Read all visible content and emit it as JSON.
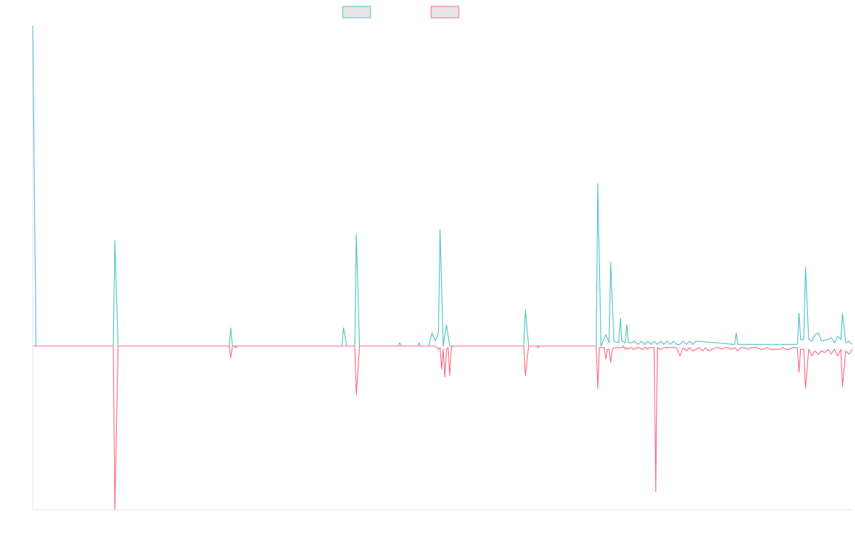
{
  "chart_data": {
    "type": "line",
    "title": "",
    "xlabel": "",
    "ylabel": "",
    "grid": false,
    "legend_position": "top-center",
    "ylim": [
      -100,
      195
    ],
    "series": [
      {
        "color": "#4bc0c0",
        "fill": "#e6e6e6",
        "points": [
          [
            0,
            195
          ],
          [
            2,
            0
          ],
          [
            50,
            0
          ],
          [
            51,
            64
          ],
          [
            53,
            0
          ],
          [
            122,
            0
          ],
          [
            123,
            11
          ],
          [
            124,
            0
          ],
          [
            192,
            0
          ],
          [
            193,
            11
          ],
          [
            195,
            0
          ],
          [
            200,
            0
          ],
          [
            201,
            68
          ],
          [
            203,
            0
          ],
          [
            227,
            0
          ],
          [
            228,
            2
          ],
          [
            229,
            0
          ],
          [
            239,
            0
          ],
          [
            240,
            2
          ],
          [
            241,
            0
          ],
          [
            246,
            0
          ],
          [
            248,
            8
          ],
          [
            250,
            3
          ],
          [
            252,
            8
          ],
          [
            253,
            71
          ],
          [
            255,
            0
          ],
          [
            257,
            13
          ],
          [
            259,
            0
          ],
          [
            305,
            0
          ],
          [
            306,
            22
          ],
          [
            308,
            0
          ],
          [
            350,
            0
          ],
          [
            351,
            99
          ],
          [
            353,
            0
          ],
          [
            356,
            7
          ],
          [
            358,
            2
          ],
          [
            359,
            51
          ],
          [
            361,
            3
          ],
          [
            364,
            2
          ],
          [
            365,
            17
          ],
          [
            366,
            3
          ],
          [
            368,
            2
          ],
          [
            369,
            13
          ],
          [
            370,
            2
          ],
          [
            372,
            2
          ],
          [
            374,
            3
          ],
          [
            376,
            1
          ],
          [
            378,
            3
          ],
          [
            380,
            1
          ],
          [
            382,
            3
          ],
          [
            384,
            1
          ],
          [
            386,
            3
          ],
          [
            388,
            1
          ],
          [
            390,
            3
          ],
          [
            392,
            1
          ],
          [
            394,
            3
          ],
          [
            396,
            1
          ],
          [
            398,
            3
          ],
          [
            400,
            1
          ],
          [
            402,
            1
          ],
          [
            404,
            3
          ],
          [
            406,
            1
          ],
          [
            408,
            3
          ],
          [
            410,
            1
          ],
          [
            412,
            3
          ],
          [
            436,
            1
          ],
          [
            437,
            8
          ],
          [
            438,
            1
          ],
          [
            475,
            1
          ],
          [
            476,
            20
          ],
          [
            477,
            4
          ],
          [
            478,
            4
          ],
          [
            479,
            4
          ],
          [
            480,
            48
          ],
          [
            482,
            4
          ],
          [
            484,
            3
          ],
          [
            486,
            7
          ],
          [
            488,
            8
          ],
          [
            490,
            3
          ],
          [
            494,
            4
          ],
          [
            496,
            5
          ],
          [
            498,
            2
          ],
          [
            500,
            6
          ],
          [
            502,
            4
          ],
          [
            503,
            20
          ],
          [
            505,
            2
          ],
          [
            507,
            3
          ],
          [
            509,
            1
          ]
        ]
      },
      {
        "color": "#ff6384",
        "fill": "#e6e6e6",
        "points": [
          [
            0,
            0
          ],
          [
            50,
            0
          ],
          [
            51,
            -100
          ],
          [
            53,
            0
          ],
          [
            122,
            0
          ],
          [
            123,
            -7
          ],
          [
            124,
            0
          ],
          [
            125,
            0
          ],
          [
            126,
            -1
          ],
          [
            127,
            0
          ],
          [
            200,
            0
          ],
          [
            201,
            -30
          ],
          [
            203,
            0
          ],
          [
            227,
            0
          ],
          [
            239,
            0
          ],
          [
            250,
            0
          ],
          [
            252,
            -2
          ],
          [
            253,
            -1
          ],
          [
            254,
            -14
          ],
          [
            255,
            -2
          ],
          [
            256,
            -19
          ],
          [
            257,
            -2
          ],
          [
            258,
            -1
          ],
          [
            259,
            -18
          ],
          [
            260,
            -1
          ],
          [
            261,
            0
          ],
          [
            305,
            0
          ],
          [
            306,
            -18
          ],
          [
            308,
            0
          ],
          [
            313,
            0
          ],
          [
            314,
            -1
          ],
          [
            315,
            0
          ],
          [
            350,
            0
          ],
          [
            351,
            -26
          ],
          [
            352,
            -1
          ],
          [
            353,
            -1
          ],
          [
            355,
            -1
          ],
          [
            356,
            -8
          ],
          [
            357,
            -2
          ],
          [
            358,
            -2
          ],
          [
            359,
            -10
          ],
          [
            360,
            -2
          ],
          [
            361,
            -1
          ],
          [
            362,
            -1
          ],
          [
            363,
            -1
          ],
          [
            364,
            -1
          ],
          [
            365,
            -1
          ],
          [
            366,
            -1
          ],
          [
            367,
            0
          ],
          [
            368,
            -2
          ],
          [
            369,
            -1
          ],
          [
            370,
            -2
          ],
          [
            371,
            -1
          ],
          [
            372,
            -1
          ],
          [
            373,
            -2
          ],
          [
            374,
            -2
          ],
          [
            375,
            -1
          ],
          [
            376,
            -1
          ],
          [
            377,
            -1
          ],
          [
            378,
            -2
          ],
          [
            379,
            -2
          ],
          [
            380,
            -1
          ],
          [
            381,
            -1
          ],
          [
            382,
            -2
          ],
          [
            383,
            -1
          ],
          [
            384,
            -1
          ],
          [
            385,
            -1
          ],
          [
            386,
            -1
          ],
          [
            387,
            -89
          ],
          [
            388,
            -1
          ],
          [
            390,
            -2
          ],
          [
            392,
            -1
          ],
          [
            394,
            -1
          ],
          [
            396,
            -1
          ],
          [
            398,
            -1
          ],
          [
            400,
            -1
          ],
          [
            402,
            -6
          ],
          [
            404,
            -1
          ],
          [
            406,
            -3
          ],
          [
            408,
            -1
          ],
          [
            410,
            -3
          ],
          [
            412,
            -2
          ],
          [
            414,
            -1
          ],
          [
            416,
            -3
          ],
          [
            418,
            -1
          ],
          [
            420,
            -3
          ],
          [
            422,
            -2
          ],
          [
            424,
            -1
          ],
          [
            426,
            -1
          ],
          [
            428,
            -2
          ],
          [
            430,
            -1
          ],
          [
            432,
            -1
          ],
          [
            434,
            -2
          ],
          [
            436,
            -1
          ],
          [
            438,
            -3
          ],
          [
            440,
            -1
          ],
          [
            442,
            -1
          ],
          [
            444,
            -2
          ],
          [
            446,
            -1
          ],
          [
            448,
            -1
          ],
          [
            450,
            -1
          ],
          [
            452,
            -2
          ],
          [
            454,
            -2
          ],
          [
            456,
            -1
          ],
          [
            458,
            -2
          ],
          [
            460,
            -2
          ],
          [
            462,
            -2
          ],
          [
            464,
            -2
          ],
          [
            466,
            -1
          ],
          [
            468,
            -2
          ],
          [
            470,
            -2
          ],
          [
            472,
            -1
          ],
          [
            474,
            -1
          ],
          [
            475,
            -1
          ],
          [
            476,
            -16
          ],
          [
            477,
            -2
          ],
          [
            479,
            -2
          ],
          [
            480,
            -26
          ],
          [
            482,
            -2
          ],
          [
            484,
            -6
          ],
          [
            486,
            -3
          ],
          [
            488,
            -5
          ],
          [
            490,
            -3
          ],
          [
            492,
            -4
          ],
          [
            494,
            -2
          ],
          [
            496,
            -5
          ],
          [
            498,
            -2
          ],
          [
            500,
            -6
          ],
          [
            502,
            -2
          ],
          [
            503,
            -25
          ],
          [
            505,
            -3
          ],
          [
            507,
            -5
          ],
          [
            509,
            -2
          ]
        ]
      }
    ]
  }
}
